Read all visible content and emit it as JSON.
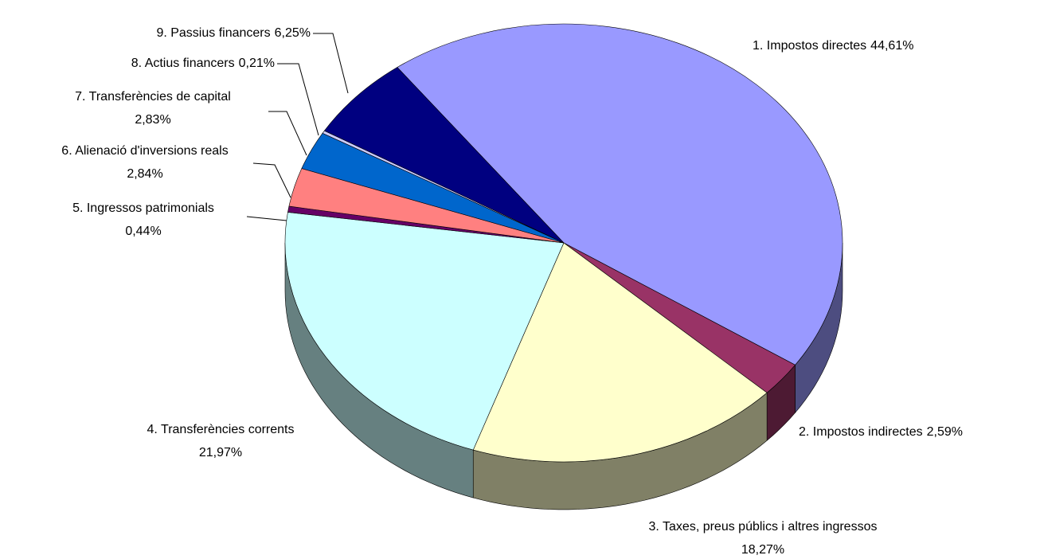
{
  "chart_data": {
    "type": "pie",
    "categories": [
      "1. Impostos directes",
      "2. Impostos indirectes",
      "3. Taxes, preus públics i altres ingressos",
      "4. Transferències corrents",
      "5. Ingressos patrimonials",
      "6. Alienació d'inversions reals",
      "7. Transferències de capital",
      "8. Actius financers",
      "9. Passius financers"
    ],
    "values": [
      44.61,
      2.59,
      18.27,
      21.97,
      0.44,
      2.84,
      2.83,
      0.21,
      6.25
    ],
    "value_labels": [
      "44,61%",
      "2,59%",
      "18,27%",
      "21,97%",
      "0,44%",
      "2,84%",
      "2,83%",
      "0,21%",
      "6,25%"
    ],
    "colors": [
      "#9999ff",
      "#993366",
      "#ffffcc",
      "#ccffff",
      "#660066",
      "#ff8080",
      "#0066cc",
      "#ccccff",
      "#000080"
    ]
  }
}
